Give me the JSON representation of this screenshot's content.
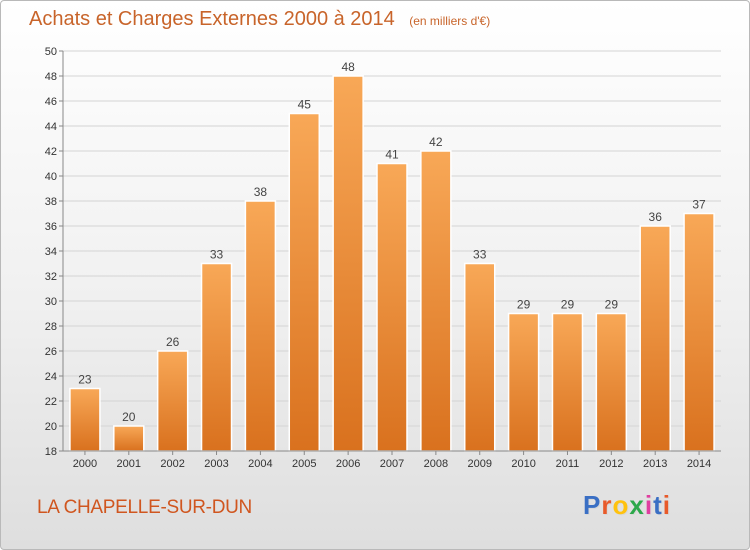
{
  "header": {
    "title": "Achats et Charges Externes 2000 à 2014",
    "unit": "(en milliers d'€)"
  },
  "footer": {
    "location": "LA CHAPELLE-SUR-DUN",
    "brand": "Proxiti",
    "brand_colors": [
      "#3a6fc4",
      "#e85a2a",
      "#ffc20e",
      "#2ca84a",
      "#e03ea0",
      "#3a6fc4",
      "#e85a2a"
    ]
  },
  "chart_data": {
    "type": "bar",
    "title": "Achats et Charges Externes 2000 à 2014",
    "subtitle": "(en milliers d'€)",
    "categories": [
      "2000",
      "2001",
      "2002",
      "2003",
      "2004",
      "2005",
      "2006",
      "2007",
      "2008",
      "2009",
      "2010",
      "2011",
      "2012",
      "2013",
      "2014"
    ],
    "values": [
      23,
      20,
      26,
      33,
      38,
      45,
      48,
      41,
      42,
      33,
      29,
      29,
      29,
      36,
      37
    ],
    "ylim": [
      18,
      50
    ],
    "yticks": [
      18,
      20,
      22,
      24,
      26,
      28,
      30,
      32,
      34,
      36,
      38,
      40,
      42,
      44,
      46,
      48,
      50
    ],
    "grid": true,
    "legend": "none",
    "bar_color_top": "#f8a857",
    "bar_color_bottom": "#d9711e",
    "label_color": "#444444"
  }
}
